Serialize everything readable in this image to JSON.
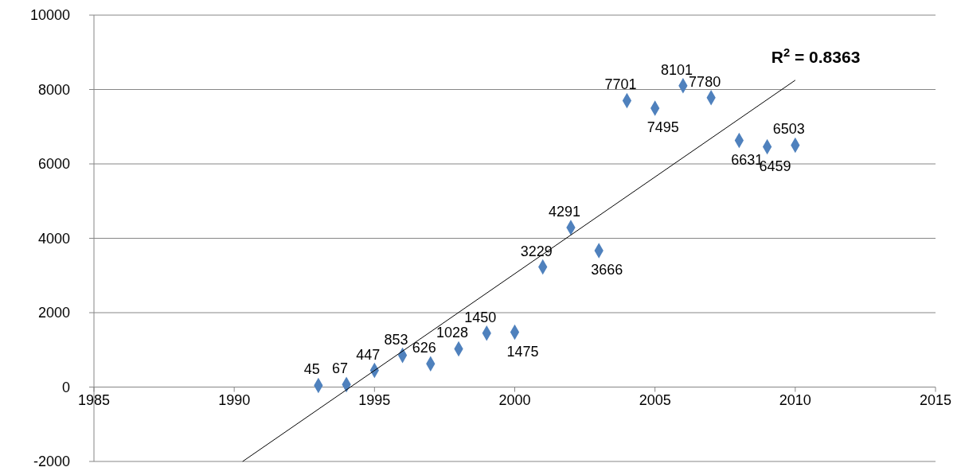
{
  "chart_data": {
    "type": "scatter",
    "xlim": [
      1985,
      2015
    ],
    "xticks": [
      1985,
      1990,
      1995,
      2000,
      2005,
      2010,
      2015
    ],
    "ylim": [
      -2000,
      10000
    ],
    "yticks": [
      -2000,
      0,
      2000,
      4000,
      6000,
      8000,
      10000
    ],
    "grid": "y",
    "marker": "diamond",
    "annotations": [
      "R$^{2}$ = 0.8363"
    ],
    "series": [
      {
        "color": "#4f81bd",
        "x": [
          1993,
          1994,
          1995,
          1996,
          1997,
          1998,
          1999,
          2000,
          2001,
          2002,
          2003,
          2004,
          2005,
          2006,
          2007,
          2008,
          2009,
          2010
        ],
        "values": [
          45,
          67,
          447,
          853,
          626,
          1028,
          1450,
          1475,
          3229,
          4291,
          3666,
          7701,
          7495,
          8101,
          7780,
          6631,
          6459,
          6503
        ],
        "value_labels": [
          "45",
          "67",
          "447",
          "853",
          "626",
          "1028",
          "1450",
          "1475",
          "3229",
          "4291",
          "3666",
          "7701",
          "7495",
          "8101",
          "7780",
          "6631",
          "6459",
          "6503"
        ]
      },
      {
        "type": "line",
        "color": "#000000",
        "marker": "none",
        "x": [
          1990.3,
          2010
        ],
        "values": [
          -2000,
          8250
        ]
      }
    ]
  }
}
